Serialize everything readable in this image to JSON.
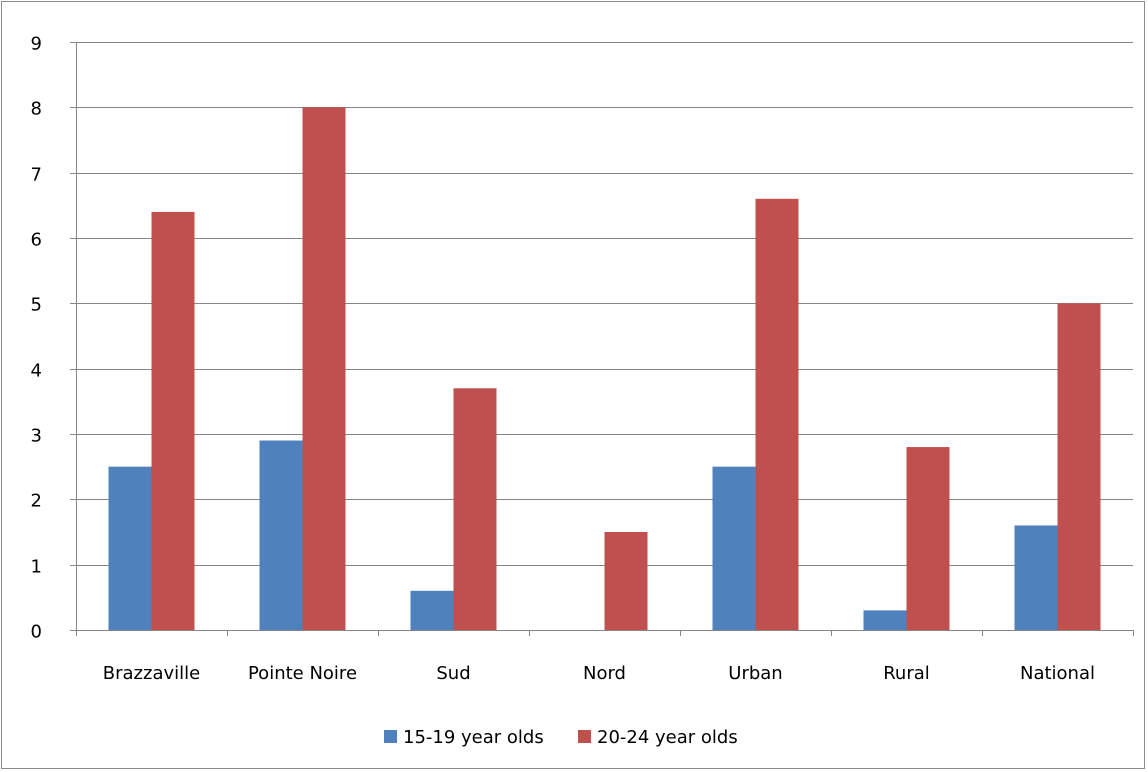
{
  "chart_data": {
    "type": "bar",
    "categories": [
      "Brazzaville",
      "Pointe Noire",
      "Sud",
      "Nord",
      "Urban",
      "Rural",
      "National"
    ],
    "series": [
      {
        "name": "15-19 year olds",
        "color": "#4f81bd",
        "values": [
          2.5,
          2.9,
          0.6,
          0,
          2.5,
          0.3,
          1.6
        ]
      },
      {
        "name": "20-24 year olds",
        "color": "#c0504d",
        "values": [
          6.4,
          8.0,
          3.7,
          1.5,
          6.6,
          2.8,
          5.0
        ]
      }
    ],
    "yticks": [
      "0",
      "1",
      "2",
      "3",
      "4",
      "5",
      "6",
      "7",
      "8",
      "9"
    ],
    "ylim": [
      0,
      9
    ],
    "grid": true,
    "legend_position": "bottom",
    "title": "",
    "xlabel": "",
    "ylabel": ""
  }
}
